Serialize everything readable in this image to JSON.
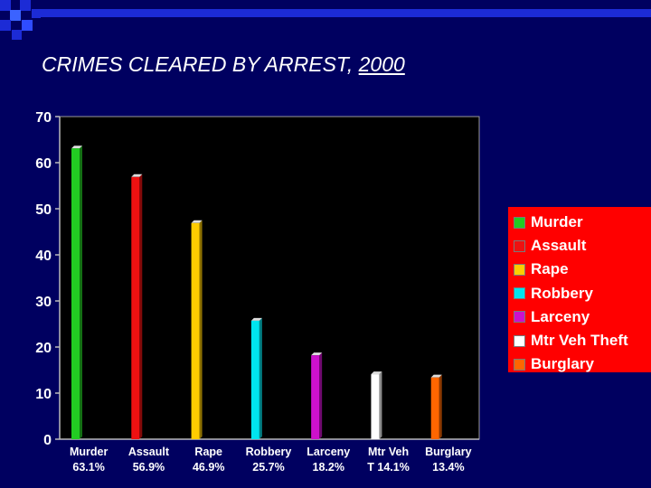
{
  "slide": {
    "title": "CRIMES CLEARED BY ARREST, ",
    "title_year": "2000"
  },
  "colors": {
    "background": "#000060",
    "plot_background": "#000000",
    "legend_background": "#ff0000",
    "accent_blue": "#1c2bd6"
  },
  "chart_data": {
    "type": "bar",
    "categories": [
      "Murder",
      "Assault",
      "Rape",
      "Robbery",
      "Larceny",
      "Mtr Veh",
      "Burglary"
    ],
    "category_sublabels": [
      "63.1%",
      "56.9%",
      "46.9%",
      "25.7%",
      "18.2%",
      "T 14.1%",
      "13.4%"
    ],
    "values": [
      63.1,
      56.9,
      46.9,
      25.7,
      18.2,
      14.1,
      13.4
    ],
    "bar_colors": [
      "#22cc22",
      "#ee1111",
      "#ffcc00",
      "#00e5ee",
      "#cc11cc",
      "#ffffff",
      "#ff6600"
    ],
    "ylim": [
      0,
      70
    ],
    "yticks": [
      "0",
      "10",
      "20",
      "30",
      "40",
      "50",
      "60",
      "70"
    ],
    "grid": false,
    "legend_position": "right",
    "legend": [
      {
        "label": "Murder",
        "color": "#22cc22"
      },
      {
        "label": "Assault",
        "color": "#ee1111"
      },
      {
        "label": "Rape",
        "color": "#ffcc00"
      },
      {
        "label": "Robbery",
        "color": "#00e5ee"
      },
      {
        "label": "Larceny",
        "color": "#cc11cc"
      },
      {
        "label": "Mtr Veh Theft",
        "color": "#ffffff"
      },
      {
        "label": "Burglary",
        "color": "#ff6600"
      }
    ]
  }
}
